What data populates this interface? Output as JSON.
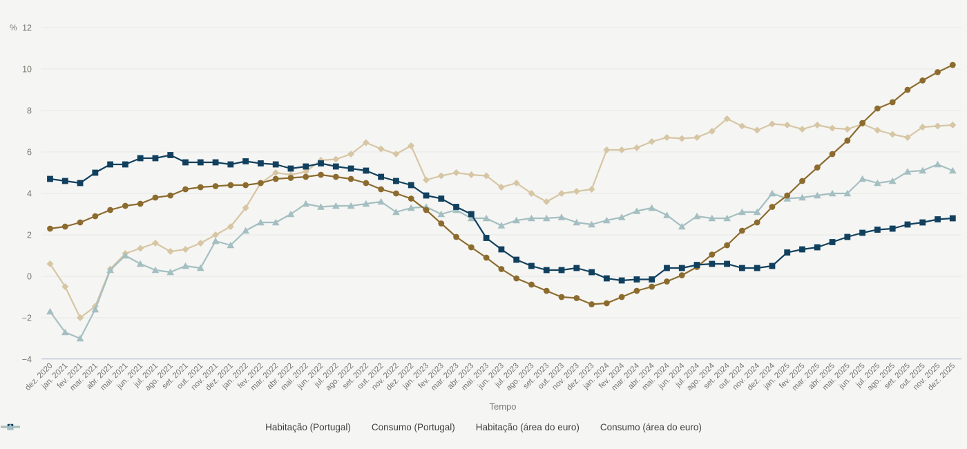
{
  "axes": {
    "y_unit": "%",
    "x_title": "Tempo",
    "y_ticks": [
      12,
      10,
      8,
      6,
      4,
      2,
      0,
      -2,
      -4
    ]
  },
  "colors": {
    "background": "#f5f5f3",
    "grid": "#e8e8e5",
    "axis_line": "#c7cad9",
    "tick_text": "#76756e",
    "legend_text": "#3f3f3c"
  },
  "chart_data": {
    "type": "line",
    "title": "",
    "xlabel": "Tempo",
    "ylabel": "%",
    "ylim": [
      -4,
      12
    ],
    "grid": true,
    "legend_position": "bottom",
    "x": [
      "dez. 2020",
      "jan. 2021",
      "fev. 2021",
      "mar. 2021",
      "abr. 2021",
      "mai. 2021",
      "jun. 2021",
      "jul. 2021",
      "ago. 2021",
      "set. 2021",
      "out. 2021",
      "nov. 2021",
      "dez. 2021",
      "jan. 2022",
      "fev. 2022",
      "mar. 2022",
      "abr. 2022",
      "mai. 2022",
      "jun. 2022",
      "jul. 2022",
      "ago. 2022",
      "set. 2022",
      "out. 2022",
      "nov. 2022",
      "dez. 2022",
      "jan. 2023",
      "fev. 2023",
      "mar. 2023",
      "abr. 2023",
      "mai. 2023",
      "jun. 2023",
      "jul. 2023",
      "ago. 2023",
      "set. 2023",
      "out. 2023",
      "nov. 2023",
      "dez. 2023",
      "jan. 2024",
      "fev. 2024",
      "mar. 2024",
      "abr. 2024",
      "mai. 2024",
      "jun. 2024",
      "jul. 2024",
      "ago. 2024",
      "set. 2024",
      "out. 2024",
      "nov. 2024",
      "dez. 2024",
      "jan. 2025",
      "fev. 2025",
      "mar. 2025",
      "abr. 2025",
      "mai. 2025",
      "jun. 2025",
      "jul. 2025",
      "ago. 2025",
      "set. 2025",
      "out. 2025",
      "nov. 2025",
      "dez. 2025"
    ],
    "series": [
      {
        "name": "Habitação (Portugal)",
        "color": "#8c6b2e",
        "marker": "circle",
        "values": [
          2.3,
          2.4,
          2.6,
          2.9,
          3.2,
          3.4,
          3.5,
          3.8,
          3.9,
          4.2,
          4.3,
          4.35,
          4.4,
          4.4,
          4.5,
          4.7,
          4.75,
          4.8,
          4.9,
          4.8,
          4.7,
          4.5,
          4.2,
          4.0,
          3.75,
          3.2,
          2.55,
          1.9,
          1.4,
          0.9,
          0.35,
          -0.1,
          -0.4,
          -0.7,
          -1.0,
          -1.05,
          -1.35,
          -1.3,
          -1.0,
          -0.7,
          -0.5,
          -0.25,
          0.05,
          0.45,
          1.05,
          1.5,
          2.2,
          2.6,
          3.35,
          3.9,
          4.6,
          5.25,
          5.9,
          6.55,
          7.4,
          8.1,
          8.4,
          9.0,
          9.45,
          9.85,
          10.2
        ]
      },
      {
        "name": "Consumo (Portugal)",
        "color": "#d6c6a4",
        "marker": "diamond",
        "values": [
          0.6,
          -0.5,
          -2.0,
          -1.45,
          0.35,
          1.1,
          1.35,
          1.6,
          1.2,
          1.3,
          1.6,
          2.0,
          2.4,
          3.3,
          4.5,
          5.0,
          4.9,
          5.05,
          5.6,
          5.65,
          5.9,
          6.45,
          6.15,
          5.9,
          6.3,
          4.65,
          4.85,
          5.0,
          4.9,
          4.85,
          4.3,
          4.5,
          4.0,
          3.6,
          4.0,
          4.1,
          4.2,
          6.1,
          6.1,
          6.2,
          6.5,
          6.7,
          6.65,
          6.7,
          7.0,
          7.6,
          7.25,
          7.05,
          7.35,
          7.3,
          7.1,
          7.3,
          7.15,
          7.1,
          7.35,
          7.05,
          6.85,
          6.7,
          7.2,
          7.25,
          7.3
        ]
      },
      {
        "name": "Habitação (área do euro)",
        "color": "#11405e",
        "marker": "square",
        "values": [
          4.7,
          4.6,
          4.5,
          5.0,
          5.4,
          5.4,
          5.7,
          5.7,
          5.85,
          5.5,
          5.5,
          5.5,
          5.4,
          5.55,
          5.45,
          5.4,
          5.2,
          5.3,
          5.45,
          5.3,
          5.2,
          5.1,
          4.8,
          4.6,
          4.4,
          3.9,
          3.75,
          3.35,
          3.0,
          1.85,
          1.3,
          0.8,
          0.5,
          0.3,
          0.3,
          0.4,
          0.2,
          -0.1,
          -0.2,
          -0.15,
          -0.15,
          0.4,
          0.4,
          0.55,
          0.6,
          0.6,
          0.4,
          0.4,
          0.5,
          1.15,
          1.3,
          1.4,
          1.65,
          1.9,
          2.1,
          2.25,
          2.3,
          2.5,
          2.6,
          2.75,
          2.8
        ]
      },
      {
        "name": "Consumo (área do euro)",
        "color": "#a4bfc1",
        "marker": "triangle",
        "values": [
          -1.7,
          -2.7,
          -3.0,
          -1.6,
          0.3,
          1.0,
          0.6,
          0.3,
          0.2,
          0.5,
          0.4,
          1.7,
          1.5,
          2.2,
          2.6,
          2.6,
          3.0,
          3.5,
          3.35,
          3.4,
          3.4,
          3.5,
          3.6,
          3.1,
          3.3,
          3.35,
          3.0,
          3.2,
          2.8,
          2.8,
          2.45,
          2.7,
          2.8,
          2.8,
          2.85,
          2.6,
          2.5,
          2.7,
          2.85,
          3.15,
          3.3,
          2.95,
          2.4,
          2.9,
          2.8,
          2.8,
          3.1,
          3.1,
          4.0,
          3.75,
          3.8,
          3.9,
          4.0,
          4.0,
          4.7,
          4.5,
          4.6,
          5.05,
          5.1,
          5.4,
          5.1
        ]
      }
    ]
  }
}
